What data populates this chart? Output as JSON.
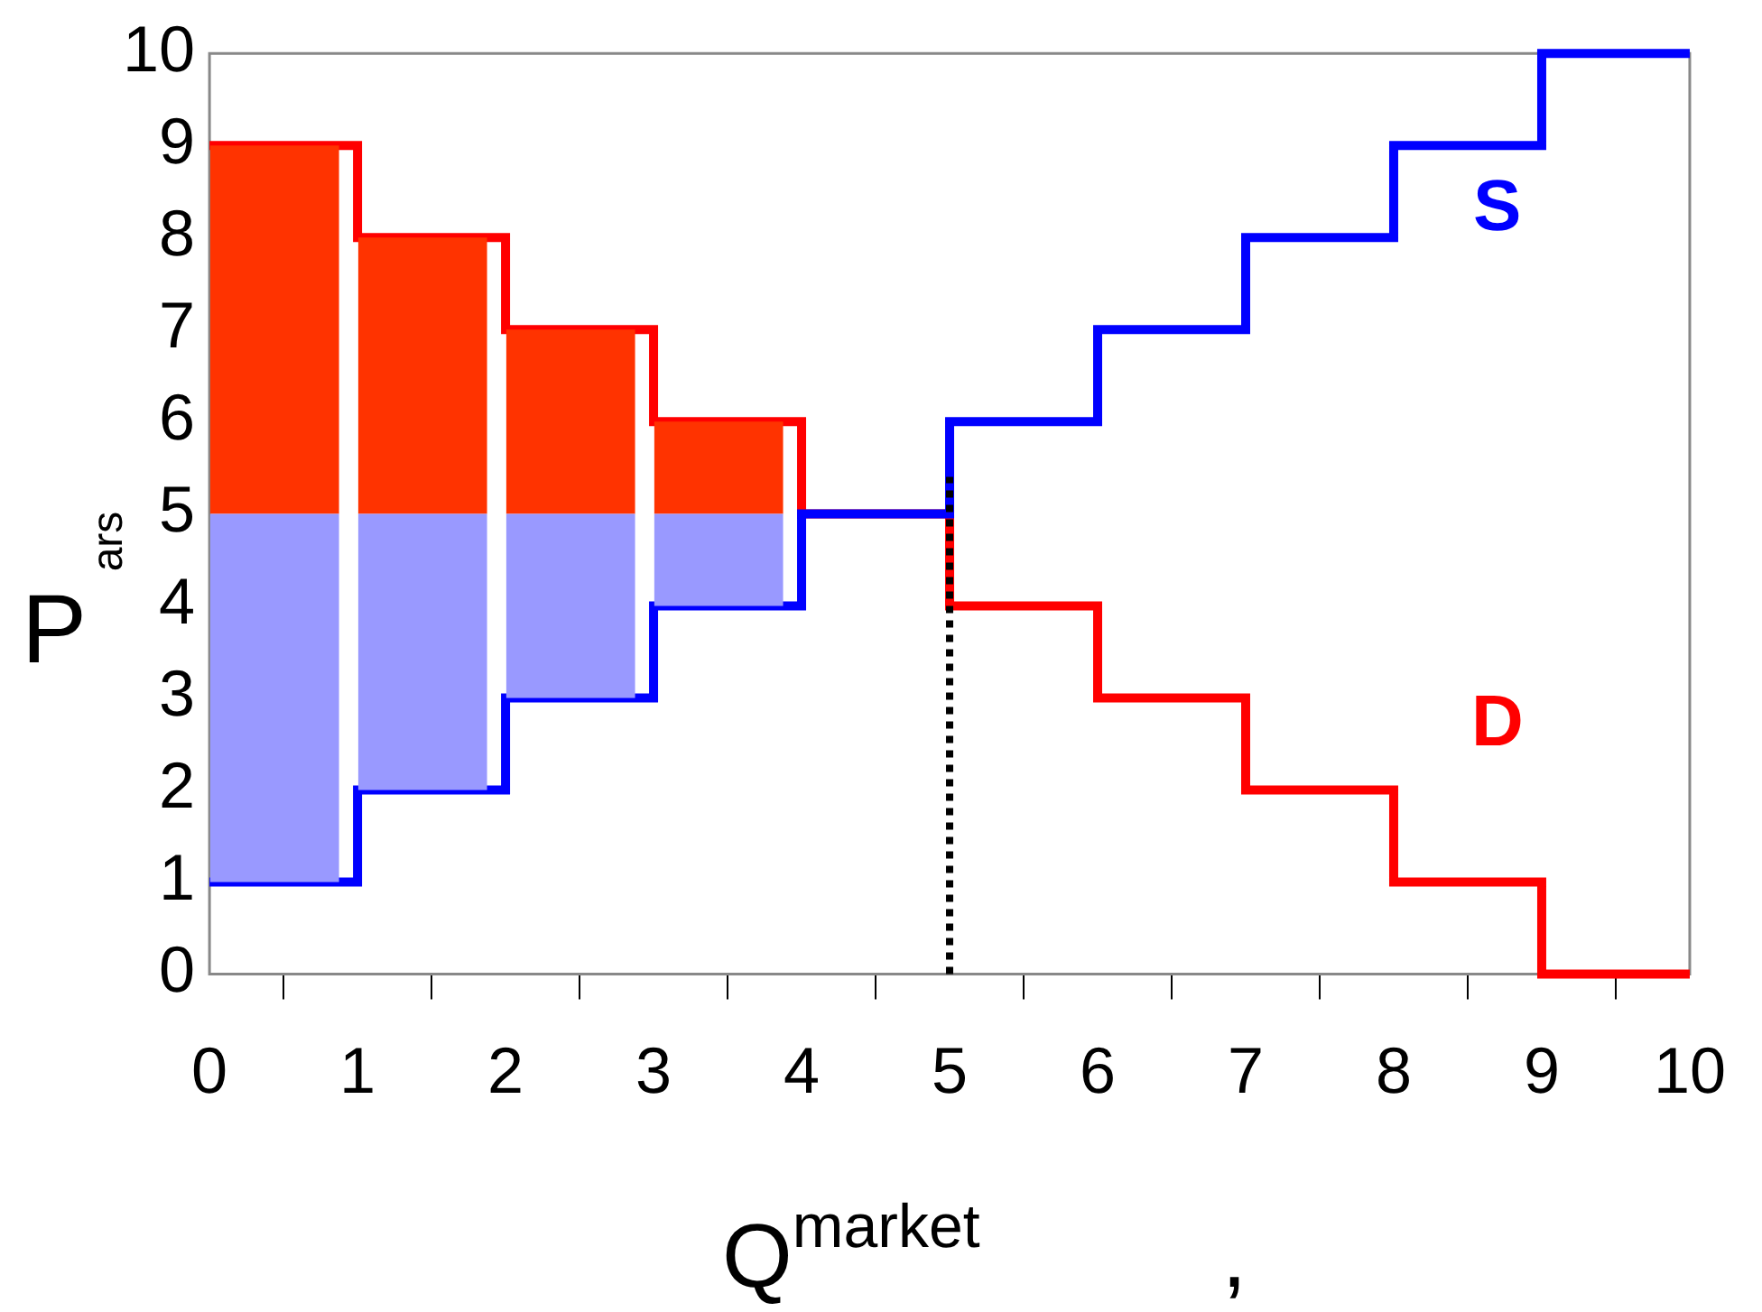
{
  "chart_data": {
    "type": "step",
    "xlabel": "Q$^{market}$ ,",
    "ylabel": "P$^{ars}$",
    "xlim": [
      0,
      10
    ],
    "xticks": [
      0,
      1,
      2,
      3,
      4,
      5,
      6,
      7,
      8,
      9,
      10
    ],
    "ylim": [
      0,
      10
    ],
    "yticks": [
      0,
      1,
      2,
      3,
      4,
      5,
      6,
      7,
      8,
      9,
      10
    ],
    "grid": false,
    "legend": false,
    "series": [
      {
        "type": "bar",
        "x": [
          0.44,
          1.44,
          2.44,
          3.44
        ],
        "base": [
          1,
          2,
          3,
          4
        ],
        "values": [
          4,
          3,
          2,
          1
        ],
        "color": "#9999ff"
      },
      {
        "type": "bar",
        "x": [
          0.44,
          1.44,
          2.44,
          3.44
        ],
        "base": [
          5,
          5,
          5,
          5
        ],
        "values": [
          4,
          3,
          2,
          1
        ],
        "color": "#ff3300"
      },
      {
        "name": "S",
        "x": [
          0,
          1,
          2,
          3,
          4,
          5,
          6,
          7,
          8,
          9,
          10
        ],
        "values": [
          1,
          2,
          3,
          4,
          5,
          6,
          7,
          8,
          9,
          10,
          10
        ],
        "color": "#0000ff"
      },
      {
        "name": "D",
        "x": [
          0,
          1,
          2,
          3,
          4,
          5,
          6,
          7,
          8,
          9,
          10
        ],
        "values": [
          9,
          8,
          7,
          6,
          5,
          4,
          3,
          2,
          1,
          0,
          0
        ],
        "color": "#ff0000"
      },
      {
        "type": "line",
        "x": [
          5,
          5
        ],
        "values": [
          0,
          5.4
        ],
        "color": "#000000",
        "line_style": "dotted"
      }
    ]
  }
}
